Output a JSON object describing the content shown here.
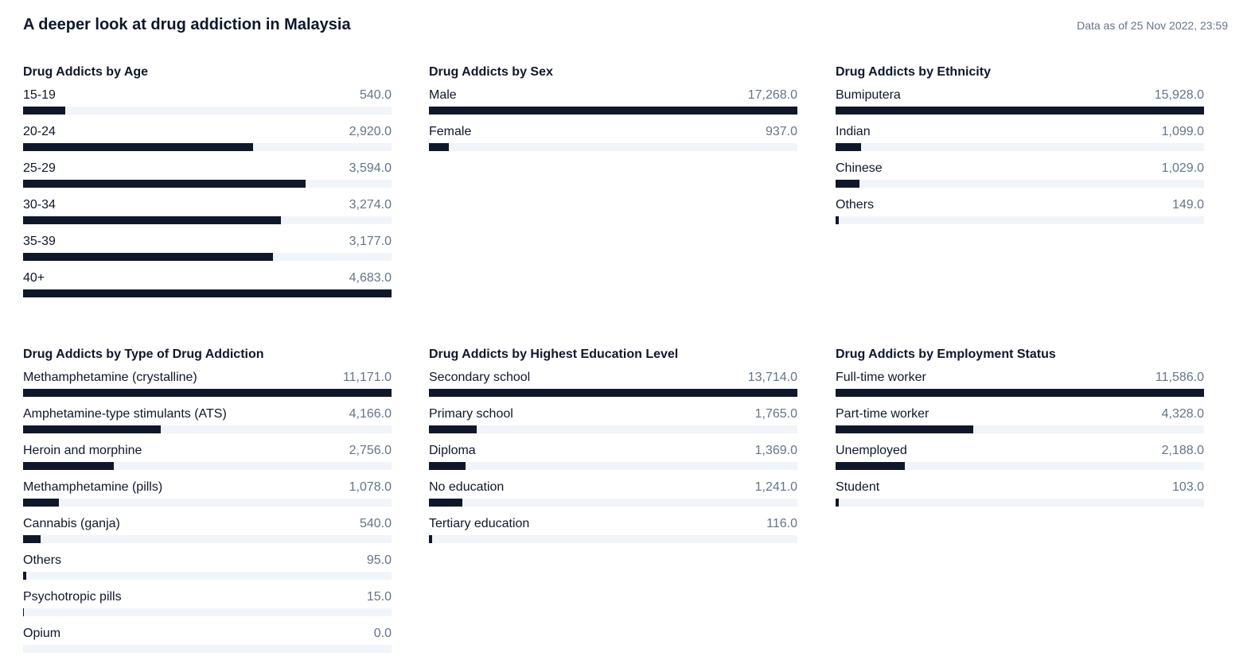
{
  "header": {
    "title": "A deeper look at drug addiction in Malaysia",
    "data_as_of": "Data as of 25 Nov 2022, 23:59"
  },
  "colors": {
    "bar": "#0f172a",
    "track": "#f1f5f9",
    "value_text": "#64748b"
  },
  "chart_data": [
    {
      "type": "bar",
      "orientation": "horizontal",
      "title": "Drug Addicts by Age",
      "categories": [
        "15-19",
        "20-24",
        "25-29",
        "30-34",
        "35-39",
        "40+"
      ],
      "values": [
        540.0,
        2920.0,
        3594.0,
        3274.0,
        3177.0,
        4683.0
      ],
      "value_labels": [
        "540.0",
        "2,920.0",
        "3,594.0",
        "3,274.0",
        "3,177.0",
        "4,683.0"
      ]
    },
    {
      "type": "bar",
      "orientation": "horizontal",
      "title": "Drug Addicts by Sex",
      "categories": [
        "Male",
        "Female"
      ],
      "values": [
        17268.0,
        937.0
      ],
      "value_labels": [
        "17,268.0",
        "937.0"
      ]
    },
    {
      "type": "bar",
      "orientation": "horizontal",
      "title": "Drug Addicts by Ethnicity",
      "categories": [
        "Bumiputera",
        "Indian",
        "Chinese",
        "Others"
      ],
      "values": [
        15928.0,
        1099.0,
        1029.0,
        149.0
      ],
      "value_labels": [
        "15,928.0",
        "1,099.0",
        "1,029.0",
        "149.0"
      ]
    },
    {
      "type": "bar",
      "orientation": "horizontal",
      "title": "Drug Addicts by Type of Drug Addiction",
      "categories": [
        "Methamphetamine (crystalline)",
        "Amphetamine-type stimulants (ATS)",
        "Heroin and morphine",
        "Methamphetamine (pills)",
        "Cannabis (ganja)",
        "Others",
        "Psychotropic pills",
        "Opium"
      ],
      "values": [
        11171.0,
        4166.0,
        2756.0,
        1078.0,
        540.0,
        95.0,
        15.0,
        0.0
      ],
      "value_labels": [
        "11,171.0",
        "4,166.0",
        "2,756.0",
        "1,078.0",
        "540.0",
        "95.0",
        "15.0",
        "0.0"
      ]
    },
    {
      "type": "bar",
      "orientation": "horizontal",
      "title": "Drug Addicts by Highest Education Level",
      "categories": [
        "Secondary school",
        "Primary school",
        "Diploma",
        "No education",
        "Tertiary education"
      ],
      "values": [
        13714.0,
        1765.0,
        1369.0,
        1241.0,
        116.0
      ],
      "value_labels": [
        "13,714.0",
        "1,765.0",
        "1,369.0",
        "1,241.0",
        "116.0"
      ]
    },
    {
      "type": "bar",
      "orientation": "horizontal",
      "title": "Drug Addicts by Employment Status",
      "categories": [
        "Full-time worker",
        "Part-time worker",
        "Unemployed",
        "Student"
      ],
      "values": [
        11586.0,
        4328.0,
        2188.0,
        103.0
      ],
      "value_labels": [
        "11,586.0",
        "4,328.0",
        "2,188.0",
        "103.0"
      ]
    }
  ]
}
